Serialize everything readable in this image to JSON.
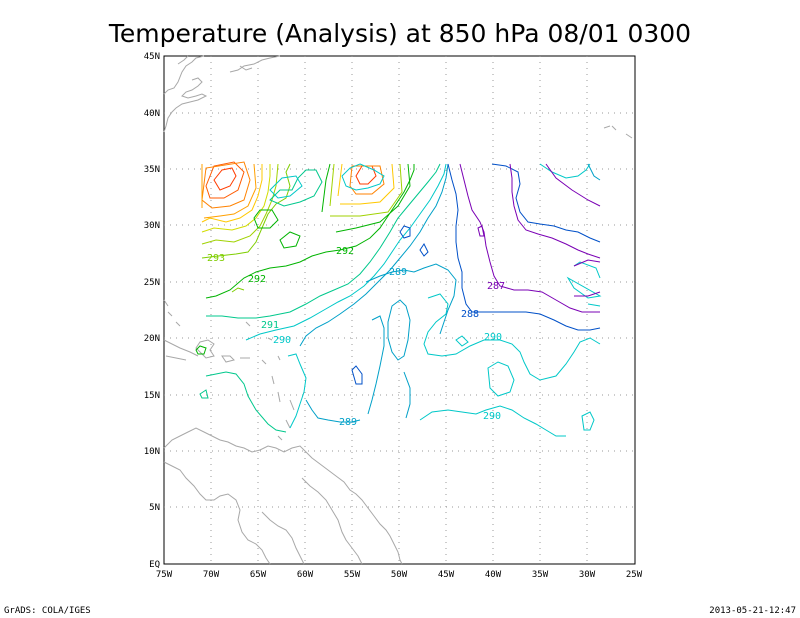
{
  "title": "Temperature (Analysis) at 850 hPa 08/01 0300",
  "footer_left": "GrADS: COLA/IGES",
  "footer_right": "2013-05-21-12:47",
  "lat_labels": [
    "45N",
    "40N",
    "35N",
    "30N",
    "25N",
    "20N",
    "15N",
    "10N",
    "5N",
    "EQ"
  ],
  "lon_labels": [
    "75W",
    "70W",
    "65W",
    "60W",
    "55W",
    "50W",
    "45W",
    "40W",
    "35W",
    "30W",
    "25W"
  ],
  "contour_labels": [
    {
      "text": "293",
      "color": "#7fce00"
    },
    {
      "text": "292",
      "color": "#00b400"
    },
    {
      "text": "292",
      "color": "#00b400"
    },
    {
      "text": "291",
      "color": "#00c88c"
    },
    {
      "text": "290",
      "color": "#00c8c8"
    },
    {
      "text": "289",
      "color": "#00a0c8"
    },
    {
      "text": "289",
      "color": "#00a0c8"
    },
    {
      "text": "288",
      "color": "#0050c8"
    },
    {
      "text": "287",
      "color": "#7a00b4"
    },
    {
      "text": "290",
      "color": "#00c8c8"
    },
    {
      "text": "290",
      "color": "#00c8c8"
    }
  ],
  "colors": {
    "coastline": "#a8a8a8",
    "grid": "#9a9a9a",
    "frame": "#000000"
  }
}
